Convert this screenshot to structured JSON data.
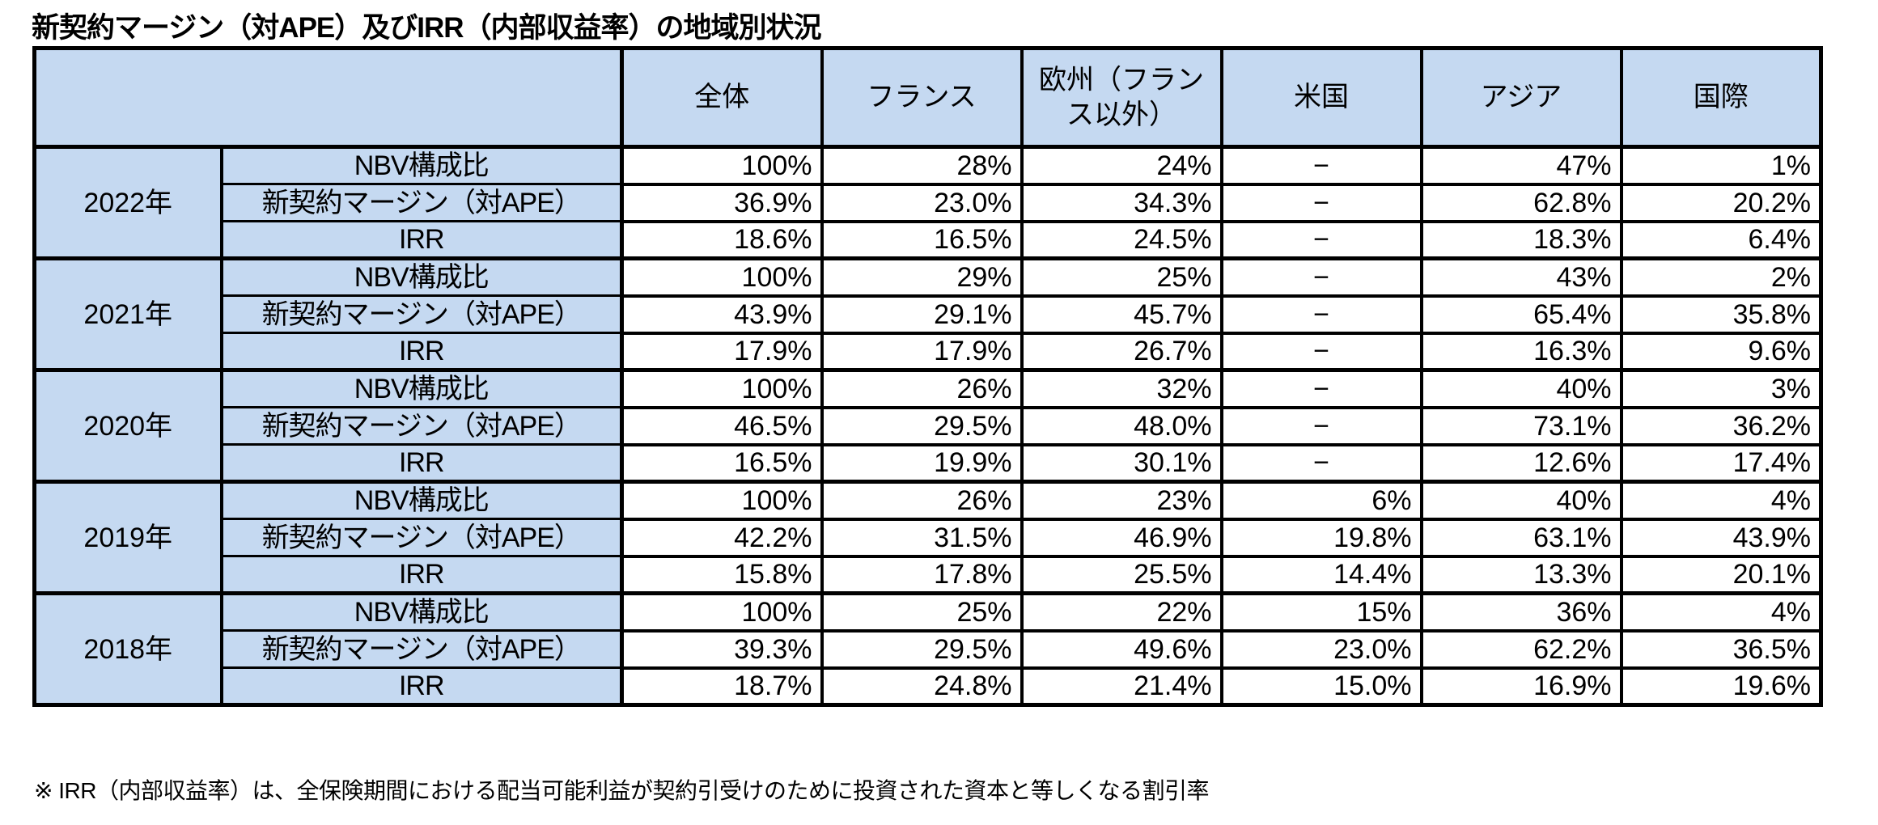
{
  "title": "新契約マージン（対APE）及びIRR（内部収益率）の地域別状況",
  "footnote": "※ IRR（内部収益率）は、全保険期間における配当可能利益が契約引受けのために投資された資本と等しくなる割引率",
  "colors": {
    "header_bg": "#C5D9F1",
    "border": "#000000",
    "text": "#000000",
    "background": "#FFFFFF"
  },
  "table": {
    "column_headers": [
      "全体",
      "フランス",
      "欧州（フランス以外）",
      "米国",
      "アジア",
      "国際"
    ],
    "metric_labels": [
      "NBV構成比",
      "新契約マージン（対APE）",
      "IRR"
    ],
    "no_data_marker": "−",
    "groups": [
      {
        "year": "2022年",
        "rows": [
          [
            "100%",
            "28%",
            "24%",
            "−",
            "47%",
            "1%"
          ],
          [
            "36.9%",
            "23.0%",
            "34.3%",
            "−",
            "62.8%",
            "20.2%"
          ],
          [
            "18.6%",
            "16.5%",
            "24.5%",
            "−",
            "18.3%",
            "6.4%"
          ]
        ]
      },
      {
        "year": "2021年",
        "rows": [
          [
            "100%",
            "29%",
            "25%",
            "−",
            "43%",
            "2%"
          ],
          [
            "43.9%",
            "29.1%",
            "45.7%",
            "−",
            "65.4%",
            "35.8%"
          ],
          [
            "17.9%",
            "17.9%",
            "26.7%",
            "−",
            "16.3%",
            "9.6%"
          ]
        ]
      },
      {
        "year": "2020年",
        "rows": [
          [
            "100%",
            "26%",
            "32%",
            "−",
            "40%",
            "3%"
          ],
          [
            "46.5%",
            "29.5%",
            "48.0%",
            "−",
            "73.1%",
            "36.2%"
          ],
          [
            "16.5%",
            "19.9%",
            "30.1%",
            "−",
            "12.6%",
            "17.4%"
          ]
        ]
      },
      {
        "year": "2019年",
        "rows": [
          [
            "100%",
            "26%",
            "23%",
            "6%",
            "40%",
            "4%"
          ],
          [
            "42.2%",
            "31.5%",
            "46.9%",
            "19.8%",
            "63.1%",
            "43.9%"
          ],
          [
            "15.8%",
            "17.8%",
            "25.5%",
            "14.4%",
            "13.3%",
            "20.1%"
          ]
        ]
      },
      {
        "year": "2018年",
        "rows": [
          [
            "100%",
            "25%",
            "22%",
            "15%",
            "36%",
            "4%"
          ],
          [
            "39.3%",
            "29.5%",
            "49.6%",
            "23.0%",
            "62.2%",
            "36.5%"
          ],
          [
            "18.7%",
            "24.8%",
            "21.4%",
            "15.0%",
            "16.9%",
            "19.6%"
          ]
        ]
      }
    ]
  }
}
